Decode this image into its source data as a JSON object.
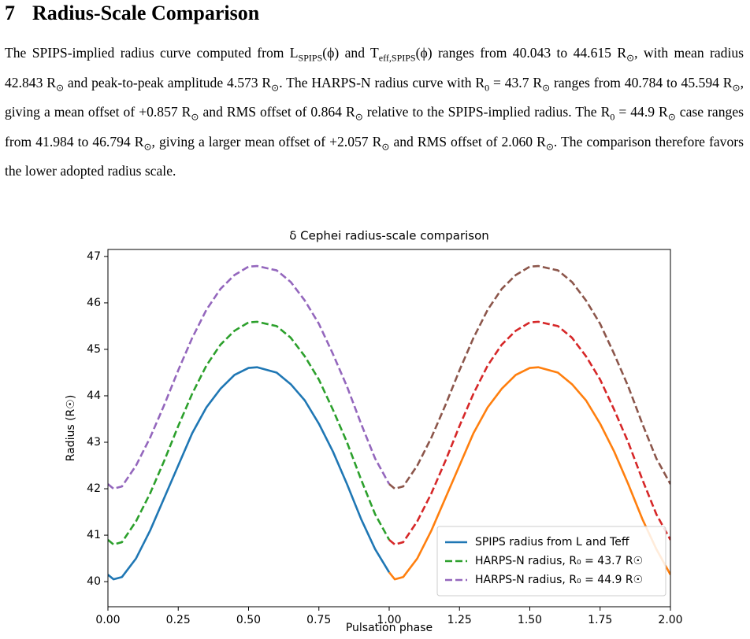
{
  "section": {
    "number": "7",
    "title": "Radius-Scale Comparison"
  },
  "paragraph": [
    "The SPIPS-implied radius curve computed from L",
    {
      "sub": "SPIPS"
    },
    "(ϕ) and T",
    {
      "sub": "eff,SPIPS"
    },
    "(ϕ) ranges from 40.043 to 44.615 R",
    {
      "sub": "⊙"
    },
    ", with mean radius 42.843 R",
    {
      "sub": "⊙"
    },
    " and peak-to-peak amplitude 4.573 R",
    {
      "sub": "⊙"
    },
    ". The HARPS-N radius curve with R",
    {
      "sub": "0"
    },
    " = 43.7 R",
    {
      "sub": "⊙"
    },
    " ranges from 40.784 to 45.594 R",
    {
      "sub": "⊙"
    },
    ", giving a mean offset of +0.857 R",
    {
      "sub": "⊙"
    },
    " and RMS offset of 0.864 R",
    {
      "sub": "⊙"
    },
    " relative to the SPIPS-implied radius. The R",
    {
      "sub": "0"
    },
    " = 44.9 R",
    {
      "sub": "⊙"
    },
    " case ranges from 41.984 to 46.794 R",
    {
      "sub": "⊙"
    },
    ", giving a larger mean offset of +2.057 R",
    {
      "sub": "⊙"
    },
    " and RMS offset of 2.060 R",
    {
      "sub": "⊙"
    },
    ". The comparison therefore favors the lower adopted radius scale."
  ],
  "chart_data": {
    "type": "line",
    "title": "δ Cephei radius-scale comparison",
    "x_label": "Pulsation phase",
    "y_label": "Radius (R☉)",
    "x": [
      0,
      0.02,
      0.05,
      0.1,
      0.15,
      0.2,
      0.25,
      0.3,
      0.35,
      0.4,
      0.45,
      0.5,
      0.53,
      0.6,
      0.65,
      0.7,
      0.75,
      0.8,
      0.85,
      0.9,
      0.95,
      1.0,
      1.02,
      1.05,
      1.1,
      1.15,
      1.2,
      1.25,
      1.3,
      1.35,
      1.4,
      1.45,
      1.5,
      1.53,
      1.6,
      1.65,
      1.7,
      1.75,
      1.8,
      1.85,
      1.9,
      1.95,
      2.0
    ],
    "series": [
      {
        "name": "SPIPS radius from L and Teff",
        "color": "#1f77b4",
        "dashed": false,
        "values": [
          40.15,
          40.05,
          40.1,
          40.5,
          41.1,
          41.8,
          42.5,
          43.2,
          43.75,
          44.15,
          44.45,
          44.6,
          44.615,
          44.5,
          44.25,
          43.9,
          43.4,
          42.8,
          42.1,
          41.35,
          40.7,
          40.2,
          null,
          null,
          null,
          null,
          null,
          null,
          null,
          null,
          null,
          null,
          null,
          null,
          null,
          null,
          null,
          null,
          null,
          null,
          null,
          null,
          null
        ]
      },
      {
        "name": "HARPS-N radius, R₀ = 43.7 R☉",
        "color": "#2ca02c",
        "dashed": true,
        "values": [
          40.9,
          40.8,
          40.85,
          41.3,
          41.9,
          42.6,
          43.35,
          44.05,
          44.65,
          45.1,
          45.4,
          45.58,
          45.594,
          45.5,
          45.25,
          44.85,
          44.35,
          43.7,
          43.0,
          42.2,
          41.45,
          40.9,
          null,
          null,
          null,
          null,
          null,
          null,
          null,
          null,
          null,
          null,
          null,
          null,
          null,
          null,
          null,
          null,
          null,
          null,
          null,
          null,
          null
        ]
      },
      {
        "name": "HARPS-N radius, R₀ = 44.9 R☉",
        "color": "#9467bd",
        "dashed": true,
        "values": [
          42.1,
          42.0,
          42.05,
          42.5,
          43.1,
          43.8,
          44.55,
          45.25,
          45.85,
          46.3,
          46.6,
          46.78,
          46.794,
          46.7,
          46.45,
          46.05,
          45.55,
          44.9,
          44.2,
          43.4,
          42.65,
          42.1,
          null,
          null,
          null,
          null,
          null,
          null,
          null,
          null,
          null,
          null,
          null,
          null,
          null,
          null,
          null,
          null,
          null,
          null,
          null,
          null,
          null
        ]
      },
      {
        "color": "#ff7f0e",
        "dashed": false,
        "values": [
          null,
          null,
          null,
          null,
          null,
          null,
          null,
          null,
          null,
          null,
          null,
          null,
          null,
          null,
          null,
          null,
          null,
          null,
          null,
          null,
          null,
          40.2,
          40.05,
          40.1,
          40.5,
          41.1,
          41.8,
          42.5,
          43.2,
          43.75,
          44.15,
          44.45,
          44.6,
          44.615,
          44.5,
          44.25,
          43.9,
          43.4,
          42.8,
          42.1,
          41.35,
          40.7,
          40.15
        ]
      },
      {
        "color": "#d62728",
        "dashed": true,
        "values": [
          null,
          null,
          null,
          null,
          null,
          null,
          null,
          null,
          null,
          null,
          null,
          null,
          null,
          null,
          null,
          null,
          null,
          null,
          null,
          null,
          null,
          40.9,
          40.8,
          40.85,
          41.3,
          41.9,
          42.6,
          43.35,
          44.05,
          44.65,
          45.1,
          45.4,
          45.58,
          45.594,
          45.5,
          45.25,
          44.85,
          44.35,
          43.7,
          43.0,
          42.2,
          41.45,
          40.9
        ]
      },
      {
        "color": "#8c564b",
        "dashed": true,
        "values": [
          null,
          null,
          null,
          null,
          null,
          null,
          null,
          null,
          null,
          null,
          null,
          null,
          null,
          null,
          null,
          null,
          null,
          null,
          null,
          null,
          null,
          42.1,
          42.0,
          42.05,
          42.5,
          43.1,
          43.8,
          44.55,
          45.25,
          45.85,
          46.3,
          46.6,
          46.78,
          46.794,
          46.7,
          46.45,
          46.05,
          45.55,
          44.9,
          44.2,
          43.4,
          42.65,
          42.1
        ]
      }
    ],
    "xlim": [
      0,
      2
    ],
    "ylim": [
      39.46,
      47.15
    ],
    "xticks": [
      {
        "value": 0,
        "label": "0.00"
      },
      {
        "value": 0.25,
        "label": "0.25"
      },
      {
        "value": 0.5,
        "label": "0.50"
      },
      {
        "value": 0.75,
        "label": "0.75"
      },
      {
        "value": 1,
        "label": "1.00"
      },
      {
        "value": 1.25,
        "label": "1.25"
      },
      {
        "value": 1.5,
        "label": "1.50"
      },
      {
        "value": 1.75,
        "label": "1.75"
      },
      {
        "value": 2,
        "label": "2.00"
      }
    ],
    "yticks": [
      40,
      41,
      42,
      43,
      44,
      45,
      46,
      47
    ],
    "legend": "lower right",
    "grid": false
  }
}
